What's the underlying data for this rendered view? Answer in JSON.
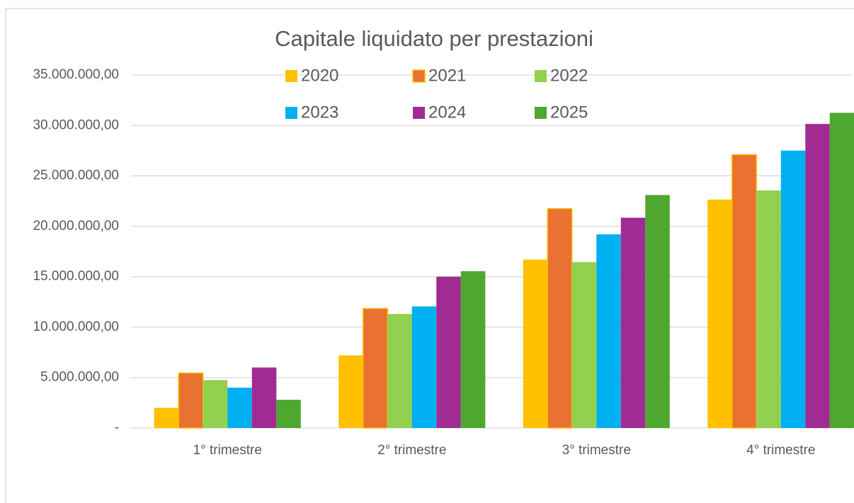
{
  "chart_data": {
    "type": "bar",
    "title": "Capitale liquidato per prestazioni",
    "categories": [
      "1° trimestre",
      "2° trimestre",
      "3° trimestre",
      "4° trimestre"
    ],
    "series": [
      {
        "name": "2020",
        "color": "#ffc000",
        "values": [
          2000000,
          7200000,
          16700000,
          22650000
        ]
      },
      {
        "name": "2021",
        "color": "#e97132",
        "edge_color": "#ffc000",
        "values": [
          5450000,
          11850000,
          21750000,
          27100000
        ]
      },
      {
        "name": "2022",
        "color": "#92d050",
        "values": [
          4750000,
          11300000,
          16450000,
          23550000
        ]
      },
      {
        "name": "2023",
        "color": "#00b0f0",
        "values": [
          4000000,
          12050000,
          19200000,
          27500000
        ]
      },
      {
        "name": "2024",
        "color": "#a02b93",
        "values": [
          6000000,
          15000000,
          20850000,
          30150000
        ]
      },
      {
        "name": "2025",
        "color": "#4ea72e",
        "values": [
          2800000,
          15550000,
          23100000,
          31250000
        ]
      }
    ],
    "ylim": [
      0,
      35000000
    ],
    "yticks": [
      {
        "value": 0,
        "label": "-"
      },
      {
        "value": 5000000,
        "label": "5.000.000,00"
      },
      {
        "value": 10000000,
        "label": "10.000.000,00"
      },
      {
        "value": 15000000,
        "label": "15.000.000,00"
      },
      {
        "value": 20000000,
        "label": "20.000.000,00"
      },
      {
        "value": 25000000,
        "label": "25.000.000,00"
      },
      {
        "value": 30000000,
        "label": "30.000.000,00"
      },
      {
        "value": 35000000,
        "label": "35.000.000,00"
      }
    ],
    "grid": true,
    "legend": "top"
  }
}
